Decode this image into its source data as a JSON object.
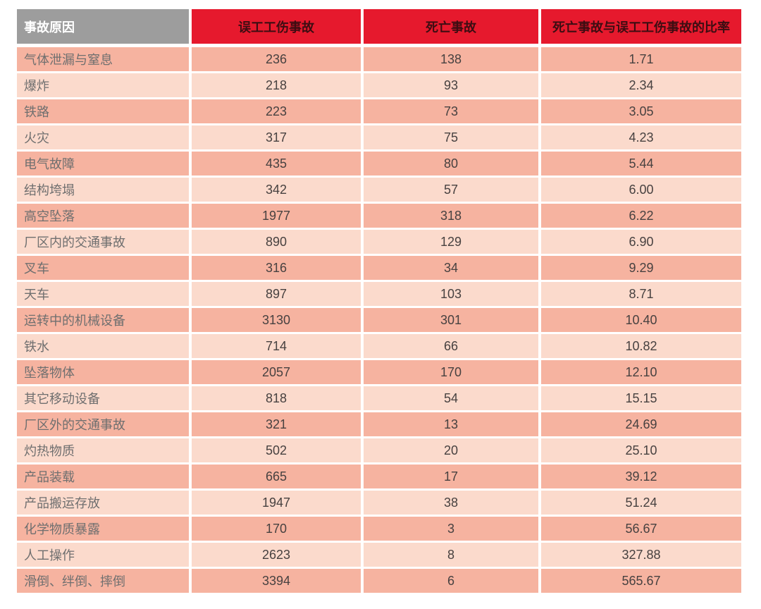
{
  "colors": {
    "header_gray": "#9d9d9d",
    "header_red": "#e6192d",
    "header_red_text": "#3d0d12",
    "header_gray_text": "#ffffff",
    "row_dark": "#f6b3a0",
    "row_light": "#fbdacc",
    "label_text": "#6f6f6f",
    "number_text": "#474140",
    "page_bg": "#ffffff"
  },
  "chart_data": {
    "type": "table",
    "columns": [
      "事故原因",
      "误工工伤事故",
      "死亡事故",
      "死亡事故与误工工伤事故的比率"
    ],
    "rows": [
      {
        "cause": "气体泄漏与窒息",
        "lost_time": "236",
        "fatal": "138",
        "ratio": "1.71"
      },
      {
        "cause": "爆炸",
        "lost_time": "218",
        "fatal": "93",
        "ratio": "2.34"
      },
      {
        "cause": "铁路",
        "lost_time": "223",
        "fatal": "73",
        "ratio": "3.05"
      },
      {
        "cause": "火灾",
        "lost_time": "317",
        "fatal": "75",
        "ratio": "4.23"
      },
      {
        "cause": "电气故障",
        "lost_time": "435",
        "fatal": "80",
        "ratio": "5.44"
      },
      {
        "cause": "结构垮塌",
        "lost_time": "342",
        "fatal": "57",
        "ratio": "6.00"
      },
      {
        "cause": "高空坠落",
        "lost_time": "1977",
        "fatal": "318",
        "ratio": "6.22"
      },
      {
        "cause": "厂区内的交通事故",
        "lost_time": "890",
        "fatal": "129",
        "ratio": "6.90"
      },
      {
        "cause": "叉车",
        "lost_time": "316",
        "fatal": "34",
        "ratio": "9.29"
      },
      {
        "cause": "天车",
        "lost_time": "897",
        "fatal": "103",
        "ratio": "8.71"
      },
      {
        "cause": "运转中的机械设备",
        "lost_time": "3130",
        "fatal": "301",
        "ratio": "10.40"
      },
      {
        "cause": "铁水",
        "lost_time": "714",
        "fatal": "66",
        "ratio": "10.82"
      },
      {
        "cause": "坠落物体",
        "lost_time": "2057",
        "fatal": "170",
        "ratio": "12.10"
      },
      {
        "cause": "其它移动设备",
        "lost_time": "818",
        "fatal": "54",
        "ratio": "15.15"
      },
      {
        "cause": "厂区外的交通事故",
        "lost_time": "321",
        "fatal": "13",
        "ratio": "24.69"
      },
      {
        "cause": "灼热物质",
        "lost_time": "502",
        "fatal": "20",
        "ratio": "25.10"
      },
      {
        "cause": "产品装载",
        "lost_time": "665",
        "fatal": "17",
        "ratio": "39.12"
      },
      {
        "cause": "产品搬运存放",
        "lost_time": "1947",
        "fatal": "38",
        "ratio": "51.24"
      },
      {
        "cause": "化学物质暴露",
        "lost_time": "170",
        "fatal": "3",
        "ratio": "56.67"
      },
      {
        "cause": "人工操作",
        "lost_time": "2623",
        "fatal": "8",
        "ratio": "327.88"
      },
      {
        "cause": "滑倒、绊倒、摔倒",
        "lost_time": "3394",
        "fatal": "6",
        "ratio": "565.67"
      }
    ]
  }
}
